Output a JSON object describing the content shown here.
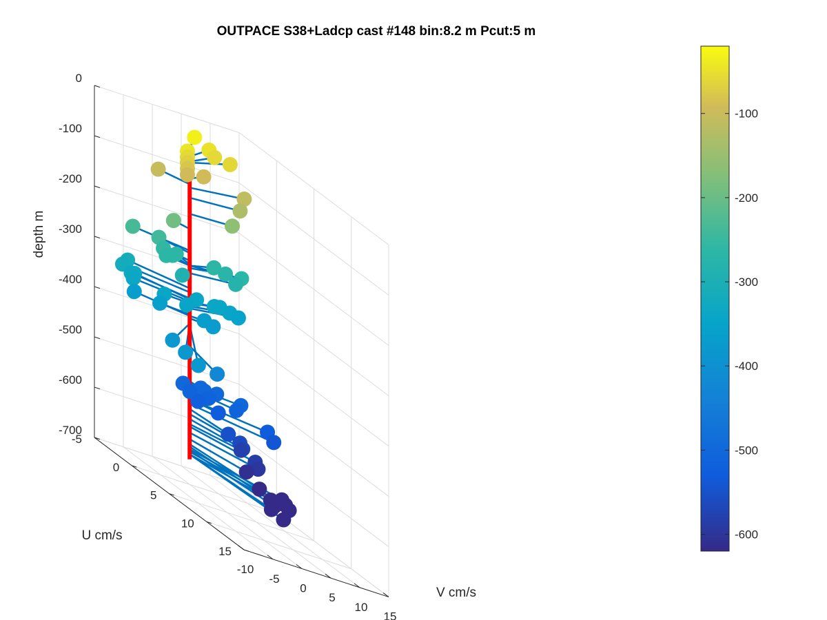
{
  "colors": {
    "stick": "#0072BD",
    "profile_line": "#FF0000",
    "grid": "#dcdcdc",
    "axis": "#262626",
    "colormap": "parula"
  },
  "chart_data": {
    "type": "scatter",
    "title": "OUTPACE S38+Ladcp cast #148 bin:8.2 m  Pcut:5 m",
    "xlabel": "V cm/s",
    "ylabel": "U cm/s",
    "zlabel": "depth m",
    "x_ticks": [
      "-10",
      "-5",
      "0",
      "5",
      "10",
      "15"
    ],
    "y_ticks": [
      "-5",
      "0",
      "5",
      "10",
      "15"
    ],
    "z_ticks": [
      "0",
      "-100",
      "-200",
      "-300",
      "-400",
      "-500",
      "-600",
      "-700"
    ],
    "xlim": [
      -10,
      15
    ],
    "ylim": [
      -5,
      15
    ],
    "zlim": [
      -700,
      0
    ],
    "grid": true,
    "colorbar": {
      "ticks": [
        "-100",
        "-200",
        "-300",
        "-400",
        "-500",
        "-600"
      ],
      "range": [
        -620,
        -20
      ],
      "colormap": "parula"
    },
    "profile_line": {
      "x": 0,
      "y": 0,
      "z_top": -40,
      "z_bottom": -650
    },
    "points": [
      {
        "v": 6.0,
        "u": -4.0,
        "z": -32
      },
      {
        "v": 8.5,
        "u": -4.0,
        "z": -48
      },
      {
        "v": 9.2,
        "u": -3.8,
        "z": -58
      },
      {
        "v": 11.5,
        "u": -3.5,
        "z": -60
      },
      {
        "v": 0.9,
        "u": -1.0,
        "z": -45
      },
      {
        "v": 0.9,
        "u": -1.0,
        "z": -57
      },
      {
        "v": 0.9,
        "u": -1.0,
        "z": -68
      },
      {
        "v": 0.9,
        "u": -1.0,
        "z": -80
      },
      {
        "v": 0.9,
        "u": -1.0,
        "z": -92
      },
      {
        "v": 5.0,
        "u": -2.0,
        "z": -92
      },
      {
        "v": -3.5,
        "u": -1.5,
        "z": -103
      },
      {
        "v": 12.0,
        "u": -2.0,
        "z": -110
      },
      {
        "v": 10.0,
        "u": -1.0,
        "z": -130
      },
      {
        "v": 8.0,
        "u": -0.5,
        "z": -162
      },
      {
        "v": -1.5,
        "u": -1.0,
        "z": -192
      },
      {
        "v": -7.5,
        "u": -1.8,
        "z": -235
      },
      {
        "v": -3.0,
        "u": -1.8,
        "z": -240
      },
      {
        "v": -3.0,
        "u": -1.2,
        "z": -255
      },
      {
        "v": -3.0,
        "u": -0.8,
        "z": -265
      },
      {
        "v": -1.0,
        "u": -1.5,
        "z": -265
      },
      {
        "v": 0.0,
        "u": -1.8,
        "z": -262
      },
      {
        "v": 6.5,
        "u": -1.8,
        "z": -265
      },
      {
        "v": 8.5,
        "u": -1.8,
        "z": -270
      },
      {
        "v": 10.5,
        "u": -1.2,
        "z": -265
      },
      {
        "v": 9.5,
        "u": -1.2,
        "z": -280
      },
      {
        "v": -1.0,
        "u": -0.2,
        "z": -290
      },
      {
        "v": -9.0,
        "u": -2.0,
        "z": -318
      },
      {
        "v": -7.5,
        "u": -2.5,
        "z": -310
      },
      {
        "v": -7.5,
        "u": -2.0,
        "z": -330
      },
      {
        "v": -7.8,
        "u": -1.5,
        "z": -336
      },
      {
        "v": -6.3,
        "u": -2.5,
        "z": -332
      },
      {
        "v": -4.0,
        "u": -0.3,
        "z": -340
      },
      {
        "v": -0.5,
        "u": 0.0,
        "z": -345
      },
      {
        "v": 3.5,
        "u": -1.8,
        "z": -340
      },
      {
        "v": 5.8,
        "u": -1.2,
        "z": -338
      },
      {
        "v": 7.5,
        "u": -1.8,
        "z": -340
      },
      {
        "v": 9.5,
        "u": -2.0,
        "z": -346
      },
      {
        "v": 11.0,
        "u": -2.0,
        "z": -350
      },
      {
        "v": 2.5,
        "u": 0.0,
        "z": -365
      },
      {
        "v": 3.8,
        "u": 0.2,
        "z": -370
      },
      {
        "v": -4.5,
        "u": -0.5,
        "z": -362
      },
      {
        "v": -7.0,
        "u": -2.0,
        "z": -365
      },
      {
        "v": -12.0,
        "u": 7.0,
        "z": -380
      },
      {
        "v": -13.0,
        "u": 9.5,
        "z": -380
      },
      {
        "v": -14.0,
        "u": 12.0,
        "z": -382
      },
      {
        "v": -3.0,
        "u": 6.0,
        "z": -425
      },
      {
        "v": 0.6,
        "u": 1.0,
        "z": -495
      },
      {
        "v": 1.5,
        "u": 0.8,
        "z": -500
      },
      {
        "v": 2.0,
        "u": 1.0,
        "z": -510
      },
      {
        "v": -1.8,
        "u": 0.5,
        "z": -500
      },
      {
        "v": -1.0,
        "u": 0.8,
        "z": -510
      },
      {
        "v": -0.5,
        "u": 1.5,
        "z": -520
      },
      {
        "v": 3.0,
        "u": 1.5,
        "z": -530
      },
      {
        "v": 5.5,
        "u": 2.0,
        "z": -510
      },
      {
        "v": 4.0,
        "u": 0.5,
        "z": -500
      },
      {
        "v": 7.8,
        "u": 0.8,
        "z": -505
      },
      {
        "v": 10.2,
        "u": 2.5,
        "z": -530
      },
      {
        "v": 10.0,
        "u": 3.5,
        "z": -540
      },
      {
        "v": 1.5,
        "u": 4.0,
        "z": -550
      },
      {
        "v": 3.5,
        "u": 4.0,
        "z": -560
      },
      {
        "v": 4.0,
        "u": 4.0,
        "z": -570
      },
      {
        "v": 5.0,
        "u": 3.0,
        "z": -580
      },
      {
        "v": 5.5,
        "u": 4.5,
        "z": -585
      },
      {
        "v": 6.0,
        "u": 4.5,
        "z": -597
      },
      {
        "v": 4.0,
        "u": 4.5,
        "z": -610
      },
      {
        "v": 3.0,
        "u": 7.0,
        "z": -620
      },
      {
        "v": 3.0,
        "u": 8.5,
        "z": -625
      },
      {
        "v": 3.0,
        "u": 9.0,
        "z": -632
      },
      {
        "v": 7.5,
        "u": 6.5,
        "z": -630
      },
      {
        "v": 7.5,
        "u": 7.0,
        "z": -635
      },
      {
        "v": 7.5,
        "u": 7.5,
        "z": -640
      },
      {
        "v": 2.5,
        "u": 9.0,
        "z": -640
      },
      {
        "v": 2.0,
        "u": 11.0,
        "z": -640
      }
    ]
  }
}
